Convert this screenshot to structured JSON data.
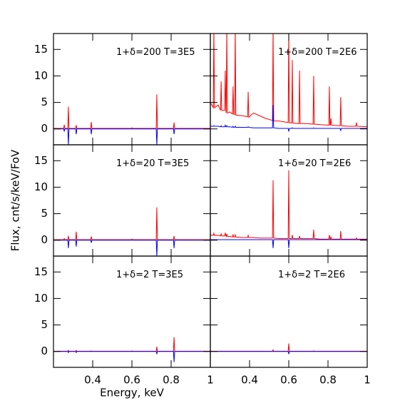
{
  "chart_data": {
    "type": "line",
    "ylabel": "Flux, cnt/s/keV/FoV",
    "xlabel": "Energy, keV",
    "xlim": [
      0.2,
      1.0
    ],
    "xticks": [
      0.4,
      0.6,
      0.8,
      1
    ],
    "ylim": [
      -3,
      18
    ],
    "yticks": [
      0,
      5,
      10,
      15
    ],
    "x": [
      0.2,
      0.215,
      0.218,
      0.221,
      0.24,
      0.252,
      0.255,
      0.258,
      0.273,
      0.276,
      0.279,
      0.281,
      0.284,
      0.287,
      0.3,
      0.313,
      0.316,
      0.319,
      0.324,
      0.327,
      0.33,
      0.36,
      0.39,
      0.393,
      0.396,
      0.42,
      0.45,
      0.48,
      0.517,
      0.52,
      0.523,
      0.55,
      0.597,
      0.6,
      0.603,
      0.615,
      0.618,
      0.621,
      0.652,
      0.655,
      0.658,
      0.69,
      0.724,
      0.727,
      0.73,
      0.76,
      0.804,
      0.807,
      0.81,
      0.812,
      0.815,
      0.818,
      0.862,
      0.865,
      0.868,
      0.9,
      0.942,
      0.945,
      0.948,
      1.0
    ],
    "panels": [
      {
        "annotation": "1+δ=200 T=3E5",
        "series": [
          {
            "color": "#ff0000",
            "values": [
              0.1,
              0.1,
              0.1,
              0.1,
              0.1,
              0.1,
              0.8,
              0.1,
              0.1,
              4.2,
              0.1,
              0.1,
              0.1,
              0.1,
              0.1,
              0.1,
              0.7,
              0.1,
              0.1,
              0.1,
              0.1,
              0.1,
              0.1,
              1.3,
              0.1,
              0.1,
              0.1,
              0.1,
              0.1,
              0.1,
              0.1,
              0.1,
              0.1,
              0.2,
              0.1,
              0.1,
              0.1,
              0.1,
              0.1,
              0.1,
              0.1,
              0.1,
              0.1,
              6.5,
              0.1,
              0.1,
              0.1,
              0.1,
              0.1,
              0.1,
              1.2,
              0.1,
              0.1,
              0.1,
              0.1,
              0.1,
              0.1,
              0.1,
              0.1,
              0.1
            ]
          },
          {
            "color": "#0000ff",
            "values": [
              0,
              0,
              0,
              0,
              0,
              0,
              -0.5,
              0,
              0,
              -3,
              0,
              0,
              0,
              0,
              0,
              0,
              -1,
              0,
              0,
              0,
              0,
              0,
              0,
              -1,
              0,
              0,
              0,
              0,
              0,
              0,
              0,
              0,
              0,
              0,
              0,
              0,
              0,
              0,
              0,
              0,
              0,
              0,
              0,
              -3,
              0,
              0,
              0,
              0,
              0,
              0,
              -1,
              0,
              0,
              0,
              0,
              0,
              0,
              0,
              0,
              0
            ]
          }
        ]
      },
      {
        "annotation": "1+δ=200 T=2E6",
        "series": [
          {
            "color": "#ff0000",
            "values": [
              5,
              4,
              19,
              4,
              4.5,
              3.5,
              9,
              3.5,
              3.5,
              11,
              3.5,
              3,
              19,
              3,
              3.2,
              2.8,
              8,
              2.8,
              2.7,
              19,
              2.6,
              2.5,
              2.3,
              7,
              2.2,
              3,
              2.5,
              2,
              1.6,
              19,
              1.5,
              1.5,
              1.2,
              19,
              1.2,
              1.1,
              13,
              1.1,
              1,
              11,
              1,
              1,
              0.9,
              10,
              0.9,
              0.8,
              0.7,
              8,
              0.7,
              0.7,
              2,
              0.7,
              0.6,
              6,
              0.6,
              0.5,
              0.5,
              1.2,
              0.5,
              0.4
            ]
          },
          {
            "color": "#0000ff",
            "values": [
              0.5,
              0.5,
              0.6,
              0.5,
              0.5,
              0.4,
              0.6,
              0.4,
              0.4,
              0.7,
              0.4,
              0.4,
              0.6,
              0.4,
              0.4,
              0.3,
              0.5,
              0.3,
              0.3,
              0.5,
              0.3,
              0.3,
              0.3,
              0.4,
              0.3,
              0.2,
              0.2,
              0.2,
              0.2,
              4.5,
              0.2,
              0.1,
              0.1,
              -0.5,
              0.1,
              0.1,
              0.2,
              0.1,
              0.1,
              0.1,
              0.1,
              0.1,
              0.1,
              0.2,
              0.1,
              0.1,
              0.1,
              0.1,
              0.1,
              0.1,
              0.1,
              0.1,
              0.1,
              -0.3,
              0.1,
              0.1,
              0.1,
              0.1,
              0.1,
              0.1
            ]
          }
        ]
      },
      {
        "annotation": "1+δ=20 T=3E5",
        "series": [
          {
            "color": "#ff0000",
            "values": [
              0.1,
              0.1,
              0.1,
              0.1,
              0.1,
              0.1,
              0.3,
              0.1,
              0.1,
              0.8,
              0.1,
              0.1,
              0.1,
              0.1,
              0.1,
              0.1,
              1.6,
              0.1,
              0.1,
              0.1,
              0.1,
              0.1,
              0.1,
              0.7,
              0.1,
              0.1,
              0.1,
              0.1,
              0.1,
              0.1,
              0.1,
              0.1,
              0.1,
              0.2,
              0.1,
              0.1,
              0.1,
              0.1,
              0.1,
              0.1,
              0.1,
              0.1,
              0.1,
              6.2,
              0.1,
              0.1,
              0.1,
              0.1,
              0.1,
              0.1,
              0.8,
              0.1,
              0.1,
              0.1,
              0.1,
              0.1,
              0.1,
              0.1,
              0.1,
              0.1
            ]
          },
          {
            "color": "#0000ff",
            "values": [
              0,
              0,
              0,
              0,
              0,
              0,
              0,
              0,
              0,
              -1.5,
              0,
              0,
              0,
              0,
              0,
              0,
              -1.2,
              0,
              0,
              0,
              0,
              0,
              0,
              -0.5,
              0,
              0,
              0,
              0,
              0,
              0,
              0,
              0,
              0,
              0,
              0,
              0,
              0,
              0,
              0,
              0,
              0,
              0,
              0,
              -3,
              0,
              0,
              0,
              0,
              0,
              0,
              -1.5,
              0,
              0,
              0,
              0,
              0,
              0,
              0,
              0,
              0
            ]
          }
        ]
      },
      {
        "annotation": "1+δ=20 T=2E6",
        "series": [
          {
            "color": "#ff0000",
            "values": [
              1,
              0.9,
              1.3,
              0.9,
              0.9,
              0.8,
              1.2,
              0.8,
              0.8,
              1.4,
              0.8,
              0.7,
              1.2,
              0.7,
              0.7,
              0.6,
              1.1,
              0.6,
              0.6,
              1,
              0.6,
              0.5,
              0.5,
              0.9,
              0.5,
              0.5,
              0.4,
              0.4,
              0.4,
              11.3,
              0.4,
              0.3,
              0.3,
              13.2,
              0.3,
              0.3,
              1,
              0.3,
              0.3,
              0.8,
              0.3,
              0.3,
              0.3,
              2,
              0.3,
              0.2,
              0.2,
              1,
              0.2,
              0.2,
              0.6,
              0.2,
              0.2,
              1.7,
              0.2,
              0.2,
              0.2,
              0.4,
              0.2,
              0.2
            ]
          },
          {
            "color": "#0000ff",
            "values": [
              0.1,
              0.1,
              0.1,
              0.1,
              0.1,
              0.1,
              0.1,
              0.1,
              0.1,
              0.1,
              0.1,
              0.1,
              0.1,
              0.1,
              0.1,
              0.1,
              0.1,
              0.1,
              0.1,
              0.1,
              0.1,
              0.1,
              0.1,
              0.1,
              0.1,
              0.1,
              0.1,
              0.1,
              0.1,
              -1.5,
              0.1,
              0.1,
              0.1,
              -1.5,
              0.1,
              0.1,
              0.1,
              0.1,
              0.1,
              0.1,
              0.1,
              0.1,
              0.1,
              0.1,
              0.1,
              0.1,
              0.1,
              0.1,
              0.1,
              0.1,
              0.1,
              0.1,
              0.1,
              0.1,
              0.1,
              0.1,
              0.1,
              0.1,
              0.1,
              0.1
            ]
          }
        ]
      },
      {
        "annotation": "1+δ=2 T=3E5",
        "series": [
          {
            "color": "#ff0000",
            "values": [
              0.05,
              0.05,
              0.05,
              0.05,
              0.05,
              0.05,
              0.05,
              0.05,
              0.05,
              0.2,
              0.05,
              0.05,
              0.05,
              0.05,
              0.05,
              0.05,
              0.2,
              0.05,
              0.05,
              0.05,
              0.05,
              0.05,
              0.05,
              0.1,
              0.05,
              0.05,
              0.05,
              0.05,
              0.05,
              0.05,
              0.05,
              0.05,
              0.05,
              0.1,
              0.05,
              0.05,
              0.05,
              0.05,
              0.05,
              0.05,
              0.05,
              0.05,
              0.05,
              0.9,
              0.05,
              0.05,
              0.05,
              0.05,
              0.05,
              0.05,
              2.7,
              0.05,
              0.05,
              0.05,
              0.05,
              0.05,
              0.05,
              0.05,
              0.05,
              0.05
            ]
          },
          {
            "color": "#0000ff",
            "values": [
              0,
              0,
              0,
              0,
              0,
              0,
              0,
              0,
              0,
              -0.2,
              0,
              0,
              0,
              0,
              0,
              0,
              -0.2,
              0,
              0,
              0,
              0,
              0,
              0,
              0,
              0,
              0,
              0,
              0,
              0,
              0,
              0,
              0,
              0,
              0,
              0,
              0,
              0,
              0,
              0,
              0,
              0,
              0,
              0,
              -0.5,
              0,
              0,
              0,
              0,
              0,
              0,
              -2,
              0,
              0,
              0,
              0,
              0,
              0,
              0,
              0,
              0
            ]
          }
        ]
      },
      {
        "annotation": "1+δ=2 T=2E6",
        "series": [
          {
            "color": "#ff0000",
            "values": [
              0.05,
              0.05,
              0.05,
              0.05,
              0.05,
              0.05,
              0.05,
              0.05,
              0.05,
              0.05,
              0.05,
              0.05,
              0.05,
              0.05,
              0.05,
              0.05,
              0.05,
              0.05,
              0.05,
              0.05,
              0.05,
              0.05,
              0.05,
              0.05,
              0.05,
              0.05,
              0.05,
              0.05,
              0.05,
              0.3,
              0.05,
              0.05,
              0.05,
              1.5,
              0.05,
              0.05,
              0.05,
              0.05,
              0.05,
              0.05,
              0.05,
              0.05,
              0.05,
              0.1,
              0.05,
              0.05,
              0.05,
              0.05,
              0.05,
              0.05,
              0.05,
              0.05,
              0.05,
              0.05,
              0.05,
              0.05,
              0.05,
              0.05,
              0.05,
              0.05
            ]
          },
          {
            "color": "#0000ff",
            "values": [
              0,
              0,
              0,
              0,
              0,
              0,
              0,
              0,
              0,
              0,
              0,
              0,
              0,
              0,
              0,
              0,
              0,
              0,
              0,
              0,
              0,
              0,
              0,
              0,
              0,
              0,
              0,
              0,
              0,
              0,
              0,
              0,
              0,
              -0.5,
              0,
              0,
              0,
              0,
              0,
              0,
              0,
              0,
              0,
              0,
              0,
              0,
              0,
              0,
              0,
              0,
              0,
              0,
              0,
              0,
              0,
              0,
              0,
              0,
              0,
              0
            ]
          }
        ]
      }
    ]
  }
}
